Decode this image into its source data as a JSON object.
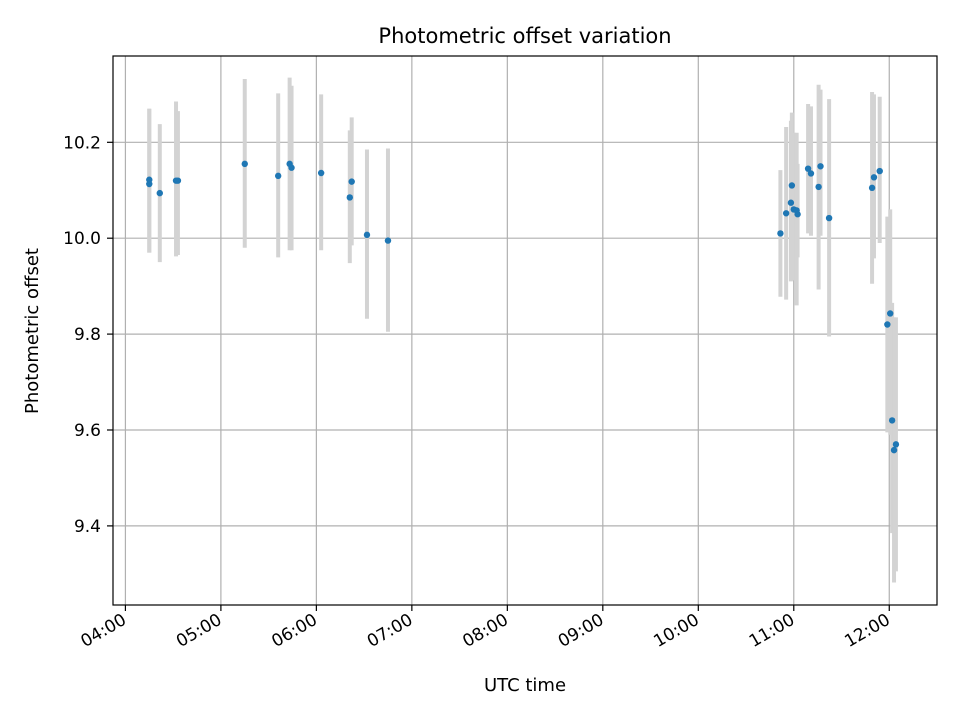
{
  "chart_data": {
    "type": "scatter",
    "title": "Photometric offset variation",
    "xlabel": "UTC time",
    "ylabel": "Photometric offset",
    "x_unit": "hours UTC",
    "xlim": [
      3.87,
      12.5
    ],
    "ylim": [
      9.235,
      10.38
    ],
    "x_ticks": [
      {
        "value": 4,
        "label": "04:00"
      },
      {
        "value": 5,
        "label": "05:00"
      },
      {
        "value": 6,
        "label": "06:00"
      },
      {
        "value": 7,
        "label": "07:00"
      },
      {
        "value": 8,
        "label": "08:00"
      },
      {
        "value": 9,
        "label": "09:00"
      },
      {
        "value": 10,
        "label": "10:00"
      },
      {
        "value": 11,
        "label": "11:00"
      },
      {
        "value": 12,
        "label": "12:00"
      }
    ],
    "y_ticks": [
      {
        "value": 9.4,
        "label": "9.4"
      },
      {
        "value": 9.6,
        "label": "9.6"
      },
      {
        "value": 9.8,
        "label": "9.8"
      },
      {
        "value": 10.0,
        "label": "10.0"
      },
      {
        "value": 10.2,
        "label": "10.2"
      }
    ],
    "grid": true,
    "marker_color": "#1f77b4",
    "errorbar_color": "#d3d3d3",
    "points": [
      {
        "x": 4.25,
        "y": 10.122,
        "ylo": 9.97,
        "yhi": 10.27
      },
      {
        "x": 4.25,
        "y": 10.113,
        "ylo": 9.97,
        "yhi": 10.27
      },
      {
        "x": 4.36,
        "y": 10.094,
        "ylo": 9.95,
        "yhi": 10.238
      },
      {
        "x": 4.53,
        "y": 10.12,
        "ylo": 9.962,
        "yhi": 10.285
      },
      {
        "x": 4.55,
        "y": 10.12,
        "ylo": 9.965,
        "yhi": 10.265
      },
      {
        "x": 5.25,
        "y": 10.155,
        "ylo": 9.98,
        "yhi": 10.332
      },
      {
        "x": 5.6,
        "y": 10.13,
        "ylo": 9.96,
        "yhi": 10.302
      },
      {
        "x": 5.72,
        "y": 10.155,
        "ylo": 9.975,
        "yhi": 10.335
      },
      {
        "x": 5.74,
        "y": 10.147,
        "ylo": 9.975,
        "yhi": 10.318
      },
      {
        "x": 6.05,
        "y": 10.136,
        "ylo": 9.975,
        "yhi": 10.3
      },
      {
        "x": 6.35,
        "y": 10.085,
        "ylo": 9.948,
        "yhi": 10.225
      },
      {
        "x": 6.37,
        "y": 10.118,
        "ylo": 9.985,
        "yhi": 10.252
      },
      {
        "x": 6.53,
        "y": 10.007,
        "ylo": 9.832,
        "yhi": 10.185
      },
      {
        "x": 6.75,
        "y": 9.995,
        "ylo": 9.805,
        "yhi": 10.187
      },
      {
        "x": 10.86,
        "y": 10.01,
        "ylo": 9.878,
        "yhi": 10.142
      },
      {
        "x": 10.92,
        "y": 10.052,
        "ylo": 9.872,
        "yhi": 10.232
      },
      {
        "x": 10.97,
        "y": 10.074,
        "ylo": 9.91,
        "yhi": 10.245
      },
      {
        "x": 10.98,
        "y": 10.11,
        "ylo": 9.95,
        "yhi": 10.262
      },
      {
        "x": 11.0,
        "y": 10.06,
        "ylo": 9.912,
        "yhi": 10.22
      },
      {
        "x": 11.03,
        "y": 10.058,
        "ylo": 9.86,
        "yhi": 10.22
      },
      {
        "x": 11.04,
        "y": 10.05,
        "ylo": 9.96,
        "yhi": 10.155
      },
      {
        "x": 11.15,
        "y": 10.145,
        "ylo": 10.01,
        "yhi": 10.28
      },
      {
        "x": 11.18,
        "y": 10.135,
        "ylo": 10.005,
        "yhi": 10.275
      },
      {
        "x": 11.26,
        "y": 10.107,
        "ylo": 9.893,
        "yhi": 10.32
      },
      {
        "x": 11.28,
        "y": 10.15,
        "ylo": 10.005,
        "yhi": 10.31
      },
      {
        "x": 11.37,
        "y": 10.042,
        "ylo": 9.795,
        "yhi": 10.29
      },
      {
        "x": 11.82,
        "y": 10.105,
        "ylo": 9.905,
        "yhi": 10.305
      },
      {
        "x": 11.84,
        "y": 10.127,
        "ylo": 9.958,
        "yhi": 10.3
      },
      {
        "x": 11.9,
        "y": 10.14,
        "ylo": 9.99,
        "yhi": 10.295
      },
      {
        "x": 11.98,
        "y": 9.82,
        "ylo": 9.595,
        "yhi": 10.045
      },
      {
        "x": 12.01,
        "y": 9.843,
        "ylo": 9.59,
        "yhi": 10.06
      },
      {
        "x": 12.03,
        "y": 9.62,
        "ylo": 9.385,
        "yhi": 9.865
      },
      {
        "x": 12.05,
        "y": 9.558,
        "ylo": 9.282,
        "yhi": 9.835
      },
      {
        "x": 12.07,
        "y": 9.57,
        "ylo": 9.305,
        "yhi": 9.835
      }
    ]
  }
}
